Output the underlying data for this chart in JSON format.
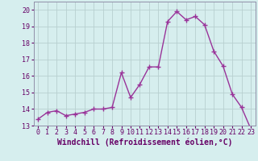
{
  "x": [
    0,
    1,
    2,
    3,
    4,
    5,
    6,
    7,
    8,
    9,
    10,
    11,
    12,
    13,
    14,
    15,
    16,
    17,
    18,
    19,
    20,
    21,
    22,
    23
  ],
  "y": [
    13.4,
    13.8,
    13.9,
    13.6,
    13.7,
    13.8,
    14.0,
    14.0,
    14.1,
    16.2,
    14.7,
    15.5,
    16.55,
    16.55,
    19.3,
    19.9,
    19.4,
    19.6,
    19.1,
    17.5,
    16.6,
    14.9,
    14.1,
    12.8
  ],
  "line_color": "#993399",
  "marker": "+",
  "marker_color": "#993399",
  "marker_size": 4,
  "xlabel": "Windchill (Refroidissement éolien,°C)",
  "xlabel_fontsize": 7,
  "bg_color": "#d6eeee",
  "grid_color": "#b8d0d0",
  "ylim": [
    13,
    20.5
  ],
  "xlim": [
    -0.5,
    23.5
  ],
  "yticks": [
    13,
    14,
    15,
    16,
    17,
    18,
    19,
    20
  ],
  "xticks": [
    0,
    1,
    2,
    3,
    4,
    5,
    6,
    7,
    8,
    9,
    10,
    11,
    12,
    13,
    14,
    15,
    16,
    17,
    18,
    19,
    20,
    21,
    22,
    23
  ],
  "tick_fontsize": 6,
  "line_width": 1.0,
  "label_color": "#660066"
}
